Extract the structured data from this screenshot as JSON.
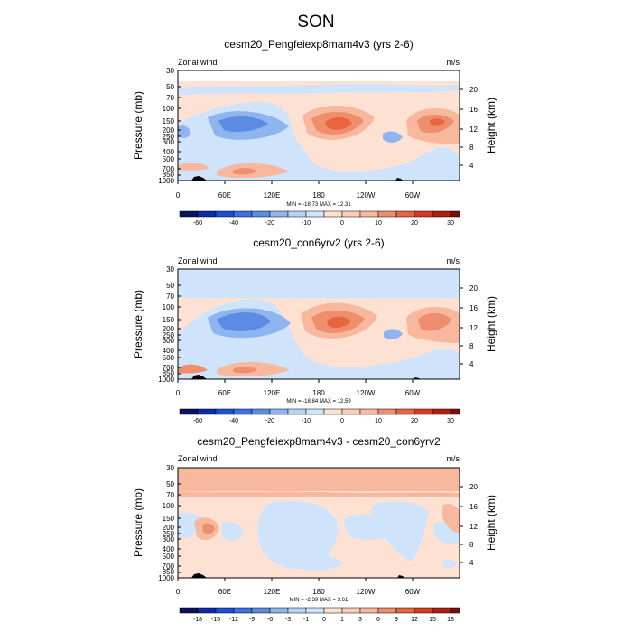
{
  "title": "SON",
  "chart_data": [
    {
      "type": "heatmap",
      "title": "cesm20_Pengfeiexp8mam4v3 (yrs 2-6)",
      "left_label": "Zonal wind",
      "right_label": "m/s",
      "ylabel": "Pressure (mb)",
      "ylabel_right": "Height (km)",
      "y_ticks": [
        "30",
        "50",
        "70",
        "100",
        "150",
        "200",
        "250",
        "300",
        "400",
        "500",
        "700",
        "850",
        "1000"
      ],
      "height_ticks": [
        "20",
        "16",
        "12",
        "8",
        "4"
      ],
      "x_ticks": [
        "0",
        "60E",
        "120E",
        "180",
        "120W",
        "60W"
      ],
      "minmax": "MIN = -18.73  MAX =  12.31",
      "min": -18.73,
      "max": 12.31,
      "colorbar_labels": [
        "-60",
        "-40",
        "-20",
        "-10",
        "0",
        "10",
        "20",
        "30"
      ],
      "features": [
        {
          "kind": "easterly jet",
          "lon": "40-60E",
          "p": "150-200 mb",
          "value": -15
        },
        {
          "kind": "westerly jet",
          "lon": "150E-150W",
          "p": "150-200 mb",
          "value": 12
        },
        {
          "kind": "westerly jet",
          "lon": "80W-60W",
          "p": "150 mb",
          "value": 12
        }
      ]
    },
    {
      "type": "heatmap",
      "title": "cesm20_con6yrv2 (yrs 2-6)",
      "left_label": "Zonal wind",
      "right_label": "m/s",
      "ylabel": "Pressure (mb)",
      "ylabel_right": "Height (km)",
      "y_ticks": [
        "30",
        "50",
        "70",
        "100",
        "150",
        "200",
        "250",
        "300",
        "400",
        "500",
        "700",
        "850",
        "1000"
      ],
      "height_ticks": [
        "20",
        "16",
        "12",
        "8",
        "4"
      ],
      "x_ticks": [
        "0",
        "60E",
        "120E",
        "180",
        "120W",
        "60W"
      ],
      "minmax": "MIN = -18.84  MAX =  12.59",
      "min": -18.84,
      "max": 12.59,
      "colorbar_labels": [
        "-60",
        "-40",
        "-20",
        "-10",
        "0",
        "10",
        "20",
        "30"
      ],
      "features": [
        {
          "kind": "easterly jet",
          "lon": "40-80E",
          "p": "150-200 mb",
          "value": -15
        },
        {
          "kind": "westerly jet",
          "lon": "150E-150W",
          "p": "150-200 mb",
          "value": 12
        },
        {
          "kind": "westerly jet",
          "lon": "80W-60W",
          "p": "150-200 mb",
          "value": 10
        }
      ]
    },
    {
      "type": "heatmap",
      "title": "cesm20_Pengfeiexp8mam4v3 - cesm20_con6yrv2",
      "left_label": "Zonal wind",
      "right_label": "m/s",
      "ylabel": "Pressure (mb)",
      "ylabel_right": "Height (km)",
      "y_ticks": [
        "30",
        "50",
        "70",
        "100",
        "150",
        "200",
        "250",
        "300",
        "400",
        "500",
        "700",
        "850",
        "1000"
      ],
      "height_ticks": [
        "20",
        "16",
        "12",
        "8",
        "4"
      ],
      "x_ticks": [
        "0",
        "60E",
        "120E",
        "180",
        "120W",
        "60W"
      ],
      "minmax": "MIN =  -2.39  MAX =   3.61",
      "min": -2.39,
      "max": 3.61,
      "colorbar_labels": [
        "-18",
        "-15",
        "-12",
        "-9",
        "-6",
        "-3",
        "-1",
        "0",
        "1",
        "3",
        "6",
        "9",
        "12",
        "15",
        "18"
      ],
      "features": [
        {
          "kind": "positive band",
          "lon": "all",
          "p": "30-50 mb",
          "value": 2
        },
        {
          "kind": "positive cell",
          "lon": "20-40E",
          "p": "200-300 mb",
          "value": 2
        }
      ]
    }
  ]
}
